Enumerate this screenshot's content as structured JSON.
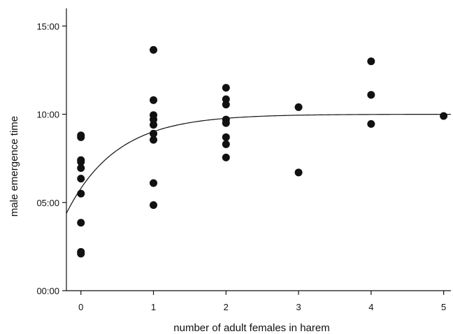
{
  "chart_data": {
    "type": "scatter",
    "title": "",
    "xlabel": "number of adult females in harem",
    "ylabel": "male emergence time",
    "xlim": [
      -0.2,
      5.1
    ],
    "ylim": [
      0,
      16
    ],
    "x_ticks": [
      0,
      1,
      2,
      3,
      4,
      5
    ],
    "x_tick_labels": [
      "0",
      "1",
      "2",
      "3",
      "4",
      "5"
    ],
    "y_ticks": [
      0,
      5,
      10,
      15
    ],
    "y_tick_labels": [
      "00:00",
      "05:00",
      "10:00",
      "15:00"
    ],
    "grid": false,
    "legend": "none",
    "series": [
      {
        "points": [
          {
            "x": 0,
            "y": 8.8
          },
          {
            "x": 0,
            "y": 8.7
          },
          {
            "x": 0,
            "y": 7.4
          },
          {
            "x": 0,
            "y": 7.3
          },
          {
            "x": 0,
            "y": 6.95
          },
          {
            "x": 0,
            "y": 6.35
          },
          {
            "x": 0,
            "y": 5.5
          },
          {
            "x": 0,
            "y": 3.85
          },
          {
            "x": 0,
            "y": 2.2
          },
          {
            "x": 0,
            "y": 2.1
          },
          {
            "x": 1,
            "y": 13.65
          },
          {
            "x": 1,
            "y": 10.8
          },
          {
            "x": 1,
            "y": 9.95
          },
          {
            "x": 1,
            "y": 9.7
          },
          {
            "x": 1,
            "y": 9.4
          },
          {
            "x": 1,
            "y": 8.9
          },
          {
            "x": 1,
            "y": 8.55
          },
          {
            "x": 1,
            "y": 6.1
          },
          {
            "x": 1,
            "y": 4.85
          },
          {
            "x": 2,
            "y": 11.5
          },
          {
            "x": 2,
            "y": 10.85
          },
          {
            "x": 2,
            "y": 10.55
          },
          {
            "x": 2,
            "y": 9.7
          },
          {
            "x": 2,
            "y": 9.5
          },
          {
            "x": 2,
            "y": 8.7
          },
          {
            "x": 2,
            "y": 8.3
          },
          {
            "x": 2,
            "y": 7.55
          },
          {
            "x": 3,
            "y": 10.4
          },
          {
            "x": 3,
            "y": 6.7
          },
          {
            "x": 4,
            "y": 13.0
          },
          {
            "x": 4,
            "y": 11.1
          },
          {
            "x": 4,
            "y": 9.45
          },
          {
            "x": 5,
            "y": 9.9
          }
        ]
      }
    ],
    "fit_curve": {
      "type": "exponential-saturation",
      "asymptote": 10.0,
      "at_zero": 5.8,
      "rate": 1.45
    }
  }
}
